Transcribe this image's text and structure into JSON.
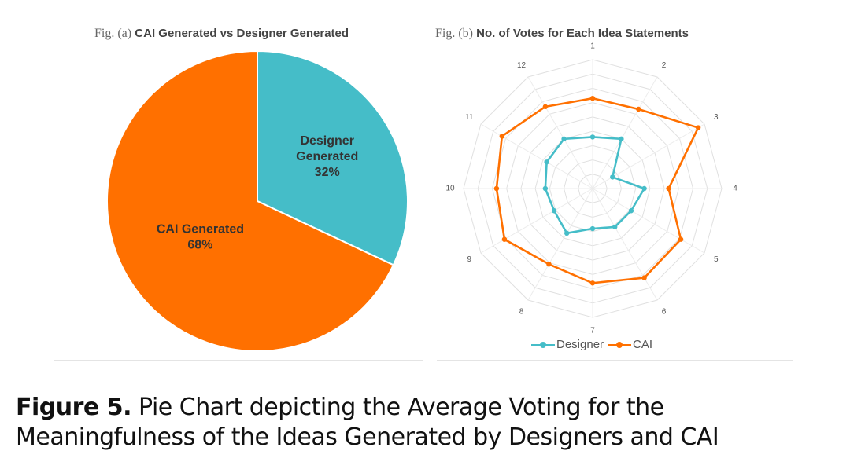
{
  "figure_caption": {
    "label": "Figure 5.",
    "text": "Pie Chart depicting the Average Voting for the Meaningfulness of the Ideas Generated by Designers and CAI"
  },
  "chart_data": [
    {
      "type": "pie",
      "title_prefix": "Fig. (a)",
      "title": "CAI Generated vs Designer Generated",
      "slices": [
        {
          "label_line1": "Designer",
          "label_line2": "Generated",
          "value": 32,
          "value_label": "32%",
          "color": "#45BDC8"
        },
        {
          "label_line1": "CAI Generated",
          "label_line2": "",
          "value": 68,
          "value_label": "68%",
          "color": "#FF7000"
        }
      ]
    },
    {
      "type": "radar",
      "title_prefix": "Fig. (b)",
      "title": "No. of Votes for Each Idea Statements",
      "categories": [
        "1",
        "2",
        "3",
        "4",
        "5",
        "6",
        "7",
        "8",
        "9",
        "10",
        "11",
        "12"
      ],
      "rlim": [
        0,
        9
      ],
      "gridlines": 9,
      "legend": "bottom",
      "series": [
        {
          "name": "Designer",
          "color": "#45BDC8",
          "values": [
            3.6,
            4.0,
            1.6,
            3.6,
            3.1,
            3.1,
            2.8,
            3.6,
            3.1,
            3.3,
            3.7,
            4.0
          ]
        },
        {
          "name": "CAI",
          "color": "#FF7000",
          "values": [
            6.3,
            6.4,
            8.5,
            5.3,
            7.1,
            7.2,
            6.6,
            6.1,
            7.1,
            6.7,
            7.3,
            6.6
          ]
        }
      ]
    }
  ]
}
